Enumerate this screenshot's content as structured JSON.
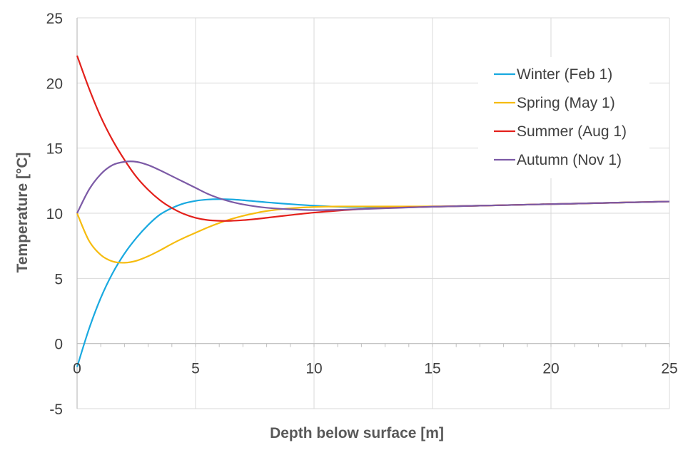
{
  "chart_data": {
    "type": "line",
    "title": "",
    "xlabel": "Depth below surface [m]",
    "ylabel": "Temperature [°C]",
    "xlim": [
      0,
      25
    ],
    "ylim": [
      -5,
      25
    ],
    "x_ticks": [
      0,
      5,
      10,
      15,
      20,
      25
    ],
    "y_ticks": [
      -5,
      0,
      5,
      10,
      15,
      20,
      25
    ],
    "grid": true,
    "legend_position": "top-right",
    "series": [
      {
        "name": "Winter (Feb 1)",
        "color": "#19a9e0",
        "x": [
          0,
          0.5,
          1,
          1.5,
          2,
          2.5,
          3,
          3.5,
          4,
          4.5,
          5,
          5.5,
          6,
          6.5,
          7,
          7.5,
          8,
          9,
          10,
          11,
          12,
          13,
          14,
          15,
          16,
          17,
          18,
          19,
          20,
          21,
          22,
          23,
          24,
          25
        ],
        "y": [
          -1.8,
          1.1,
          3.5,
          5.4,
          6.9,
          8.1,
          9.1,
          9.9,
          10.4,
          10.75,
          10.95,
          11.05,
          11.08,
          11.06,
          11.0,
          10.92,
          10.84,
          10.7,
          10.58,
          10.5,
          10.47,
          10.46,
          10.48,
          10.5,
          10.54,
          10.58,
          10.62,
          10.66,
          10.7,
          10.74,
          10.78,
          10.82,
          10.86,
          10.9
        ]
      },
      {
        "name": "Spring (May 1)",
        "color": "#f6bc0f",
        "x": [
          0,
          0.5,
          1,
          1.5,
          2,
          2.5,
          3,
          3.5,
          4,
          4.5,
          5,
          5.5,
          6,
          6.5,
          7,
          7.5,
          8,
          9,
          10,
          11,
          12,
          13,
          14,
          15,
          16,
          17,
          18,
          19,
          20,
          21,
          22,
          23,
          24,
          25
        ],
        "y": [
          10.0,
          7.9,
          6.8,
          6.3,
          6.2,
          6.35,
          6.7,
          7.15,
          7.65,
          8.1,
          8.5,
          8.9,
          9.25,
          9.55,
          9.8,
          10.0,
          10.17,
          10.38,
          10.48,
          10.52,
          10.52,
          10.52,
          10.52,
          10.53,
          10.55,
          10.58,
          10.62,
          10.66,
          10.7,
          10.74,
          10.78,
          10.82,
          10.86,
          10.9
        ]
      },
      {
        "name": "Summer (Aug 1)",
        "color": "#e3201b",
        "x": [
          0,
          0.5,
          1,
          1.5,
          2,
          2.5,
          3,
          3.5,
          4,
          4.5,
          5,
          5.5,
          6,
          6.5,
          7,
          7.5,
          8,
          9,
          10,
          11,
          12,
          13,
          14,
          15,
          16,
          17,
          18,
          19,
          20,
          21,
          22,
          23,
          24,
          25
        ],
        "y": [
          22.1,
          19.6,
          17.4,
          15.6,
          14.1,
          12.8,
          11.8,
          11.0,
          10.4,
          9.95,
          9.65,
          9.48,
          9.42,
          9.42,
          9.47,
          9.55,
          9.65,
          9.86,
          10.05,
          10.2,
          10.32,
          10.4,
          10.45,
          10.5,
          10.54,
          10.58,
          10.62,
          10.66,
          10.7,
          10.74,
          10.78,
          10.82,
          10.86,
          10.9
        ]
      },
      {
        "name": "Autumn (Nov 1)",
        "color": "#7c5aa6",
        "x": [
          0,
          0.5,
          1,
          1.5,
          2,
          2.5,
          3,
          3.5,
          4,
          4.5,
          5,
          5.5,
          6,
          6.5,
          7,
          7.5,
          8,
          9,
          10,
          11,
          12,
          13,
          14,
          15,
          16,
          17,
          18,
          19,
          20,
          21,
          22,
          23,
          24,
          25
        ],
        "y": [
          10.0,
          11.8,
          13.0,
          13.7,
          13.95,
          13.95,
          13.7,
          13.3,
          12.85,
          12.4,
          11.95,
          11.5,
          11.15,
          10.88,
          10.68,
          10.53,
          10.42,
          10.3,
          10.24,
          10.26,
          10.32,
          10.38,
          10.44,
          10.5,
          10.54,
          10.58,
          10.62,
          10.66,
          10.7,
          10.74,
          10.78,
          10.82,
          10.86,
          10.9
        ]
      }
    ]
  }
}
